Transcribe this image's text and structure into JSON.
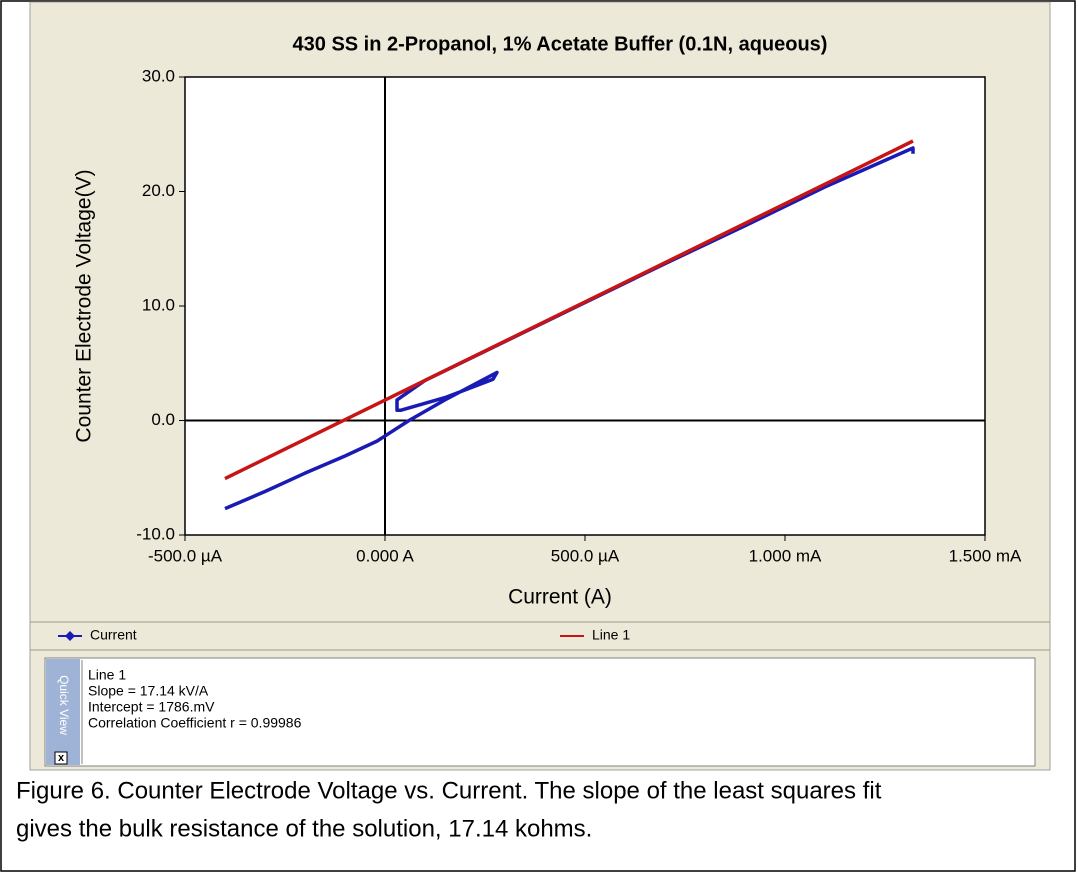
{
  "chart_data": {
    "type": "line",
    "title": "430 SS in 2-Propanol, 1% Acetate Buffer (0.1N, aqueous)",
    "xlabel": "Current (A)",
    "ylabel": "Counter Electrode Voltage(V)",
    "xlim": [
      -0.0005,
      0.0015
    ],
    "ylim": [
      -10,
      30
    ],
    "xticks": [
      {
        "value": -0.0005,
        "label": "-500.0 µA"
      },
      {
        "value": 0,
        "label": "0.000 A"
      },
      {
        "value": 0.0005,
        "label": "500.0 µA"
      },
      {
        "value": 0.001,
        "label": "1.000 mA"
      },
      {
        "value": 0.0015,
        "label": "1.500 mA"
      }
    ],
    "yticks": [
      {
        "value": -10,
        "label": "-10.0"
      },
      {
        "value": 0,
        "label": "0.0"
      },
      {
        "value": 10,
        "label": "10.0"
      },
      {
        "value": 20,
        "label": "20.0"
      },
      {
        "value": 30,
        "label": "30.0"
      }
    ],
    "grid": false,
    "series": [
      {
        "name": "Current",
        "color": "#1a1ab4",
        "marker": "diamond",
        "x": [
          -0.0004,
          -0.0003,
          -0.0002,
          -0.0001,
          -2e-05,
          2e-05,
          6e-05,
          0.00015,
          0.00028,
          0.00027,
          0.00015,
          4e-05,
          3e-05,
          3e-05,
          0.0001,
          0.0003,
          0.0005,
          0.0007,
          0.0009,
          0.0011,
          0.00132,
          0.00132
        ],
        "values": [
          -7.7,
          -6.2,
          -4.6,
          -3.1,
          -1.8,
          -0.9,
          0,
          1.8,
          4.2,
          3.6,
          2.0,
          0.9,
          0.9,
          1.8,
          3.5,
          6.9,
          10.3,
          13.7,
          17.0,
          20.4,
          23.8,
          23.3
        ]
      },
      {
        "name": "Line 1",
        "color": "#c81414",
        "x": [
          -0.0004,
          0.00132
        ],
        "values": [
          -5.07,
          24.41
        ]
      }
    ]
  },
  "quick_view": {
    "tab": "Quick View",
    "close": "x",
    "lines": [
      "Line 1",
      "Slope = 17.14 kV/A",
      "Intercept = 1786.mV",
      "Correlation Coefficient r = 0.99986"
    ]
  },
  "caption": [
    "Figure 6.  Counter Electrode Voltage vs. Current.  The slope of the least squares fit",
    "gives the bulk resistance of the solution, 17.14 kohms."
  ]
}
